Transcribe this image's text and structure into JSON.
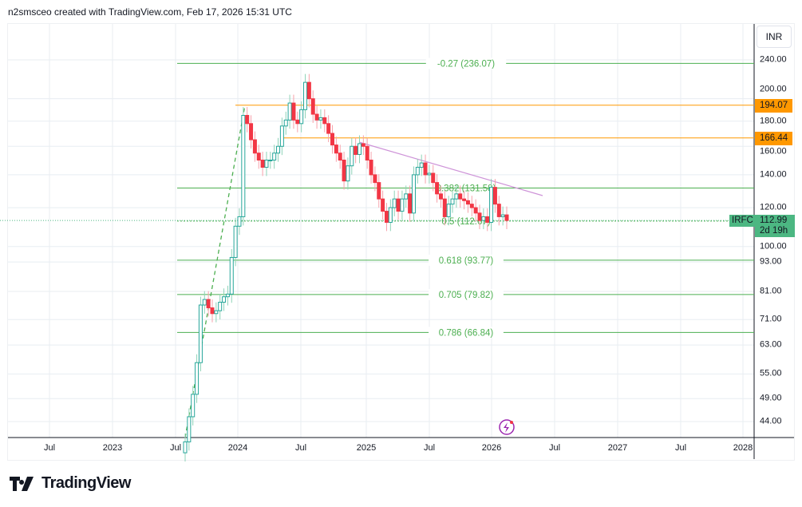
{
  "header": {
    "attribution": "n2smsceo created with TradingView.com, Feb 17, 2026 15:31 UTC"
  },
  "currency_button": "INR",
  "symbol": "IRFC",
  "last_price": "112.99",
  "countdown": "2d 19h",
  "brand": "TradingView",
  "colors": {
    "up": "#26a69a",
    "down": "#f23645",
    "fib": "#4caf50",
    "orange": "#ff9800",
    "trend": "#ce93d8",
    "price": "#4cb782"
  },
  "price_axis": [
    "240.00",
    "200.00",
    "180.00",
    "160.00",
    "140.00",
    "120.00",
    "100.00",
    "93.00",
    "81.00",
    "71.00",
    "63.00",
    "55.00",
    "49.00",
    "44.00"
  ],
  "time_axis": [
    "Jul",
    "2023",
    "Jul",
    "2024",
    "Jul",
    "2025",
    "Jul",
    "2026",
    "Jul",
    "2027",
    "Jul",
    "2028"
  ],
  "horizontal_levels": [
    {
      "label": "194.07",
      "price": 194.07
    },
    {
      "label": "166.44",
      "price": 166.44
    }
  ],
  "fib_levels": [
    {
      "label": "-0.27 (236.07)",
      "price": 236.07
    },
    {
      "label": "0.382 (131.58)",
      "price": 131.58
    },
    {
      "label": "0.5 (112.67)",
      "price": 112.67
    },
    {
      "label": "0.618 (93.77)",
      "price": 93.77
    },
    {
      "label": "0.705 (79.82)",
      "price": 79.82
    },
    {
      "label": "0.786 (66.84)",
      "price": 66.84
    }
  ],
  "chart_data": {
    "type": "candlestick",
    "scale": "log",
    "ylim": [
      40,
      250
    ],
    "xlabel": "",
    "ylabel": "INR",
    "closes": [
      40,
      45,
      50,
      58,
      76,
      78,
      75,
      73,
      74,
      77,
      79,
      80,
      95,
      110,
      115,
      185,
      178,
      165,
      155,
      150,
      145,
      150,
      150,
      155,
      160,
      176,
      181,
      196,
      181,
      178,
      190,
      216,
      200,
      186,
      181,
      183,
      178,
      170,
      161,
      155,
      150,
      136,
      146,
      160,
      154,
      162,
      160,
      150,
      140,
      135,
      125,
      118,
      112,
      120,
      125,
      118,
      125,
      128,
      117,
      140,
      145,
      148,
      140,
      141,
      135,
      128,
      125,
      115,
      122,
      125,
      128,
      125,
      124,
      122,
      120,
      117,
      113,
      115,
      112,
      132,
      122,
      115,
      116,
      113
    ]
  }
}
